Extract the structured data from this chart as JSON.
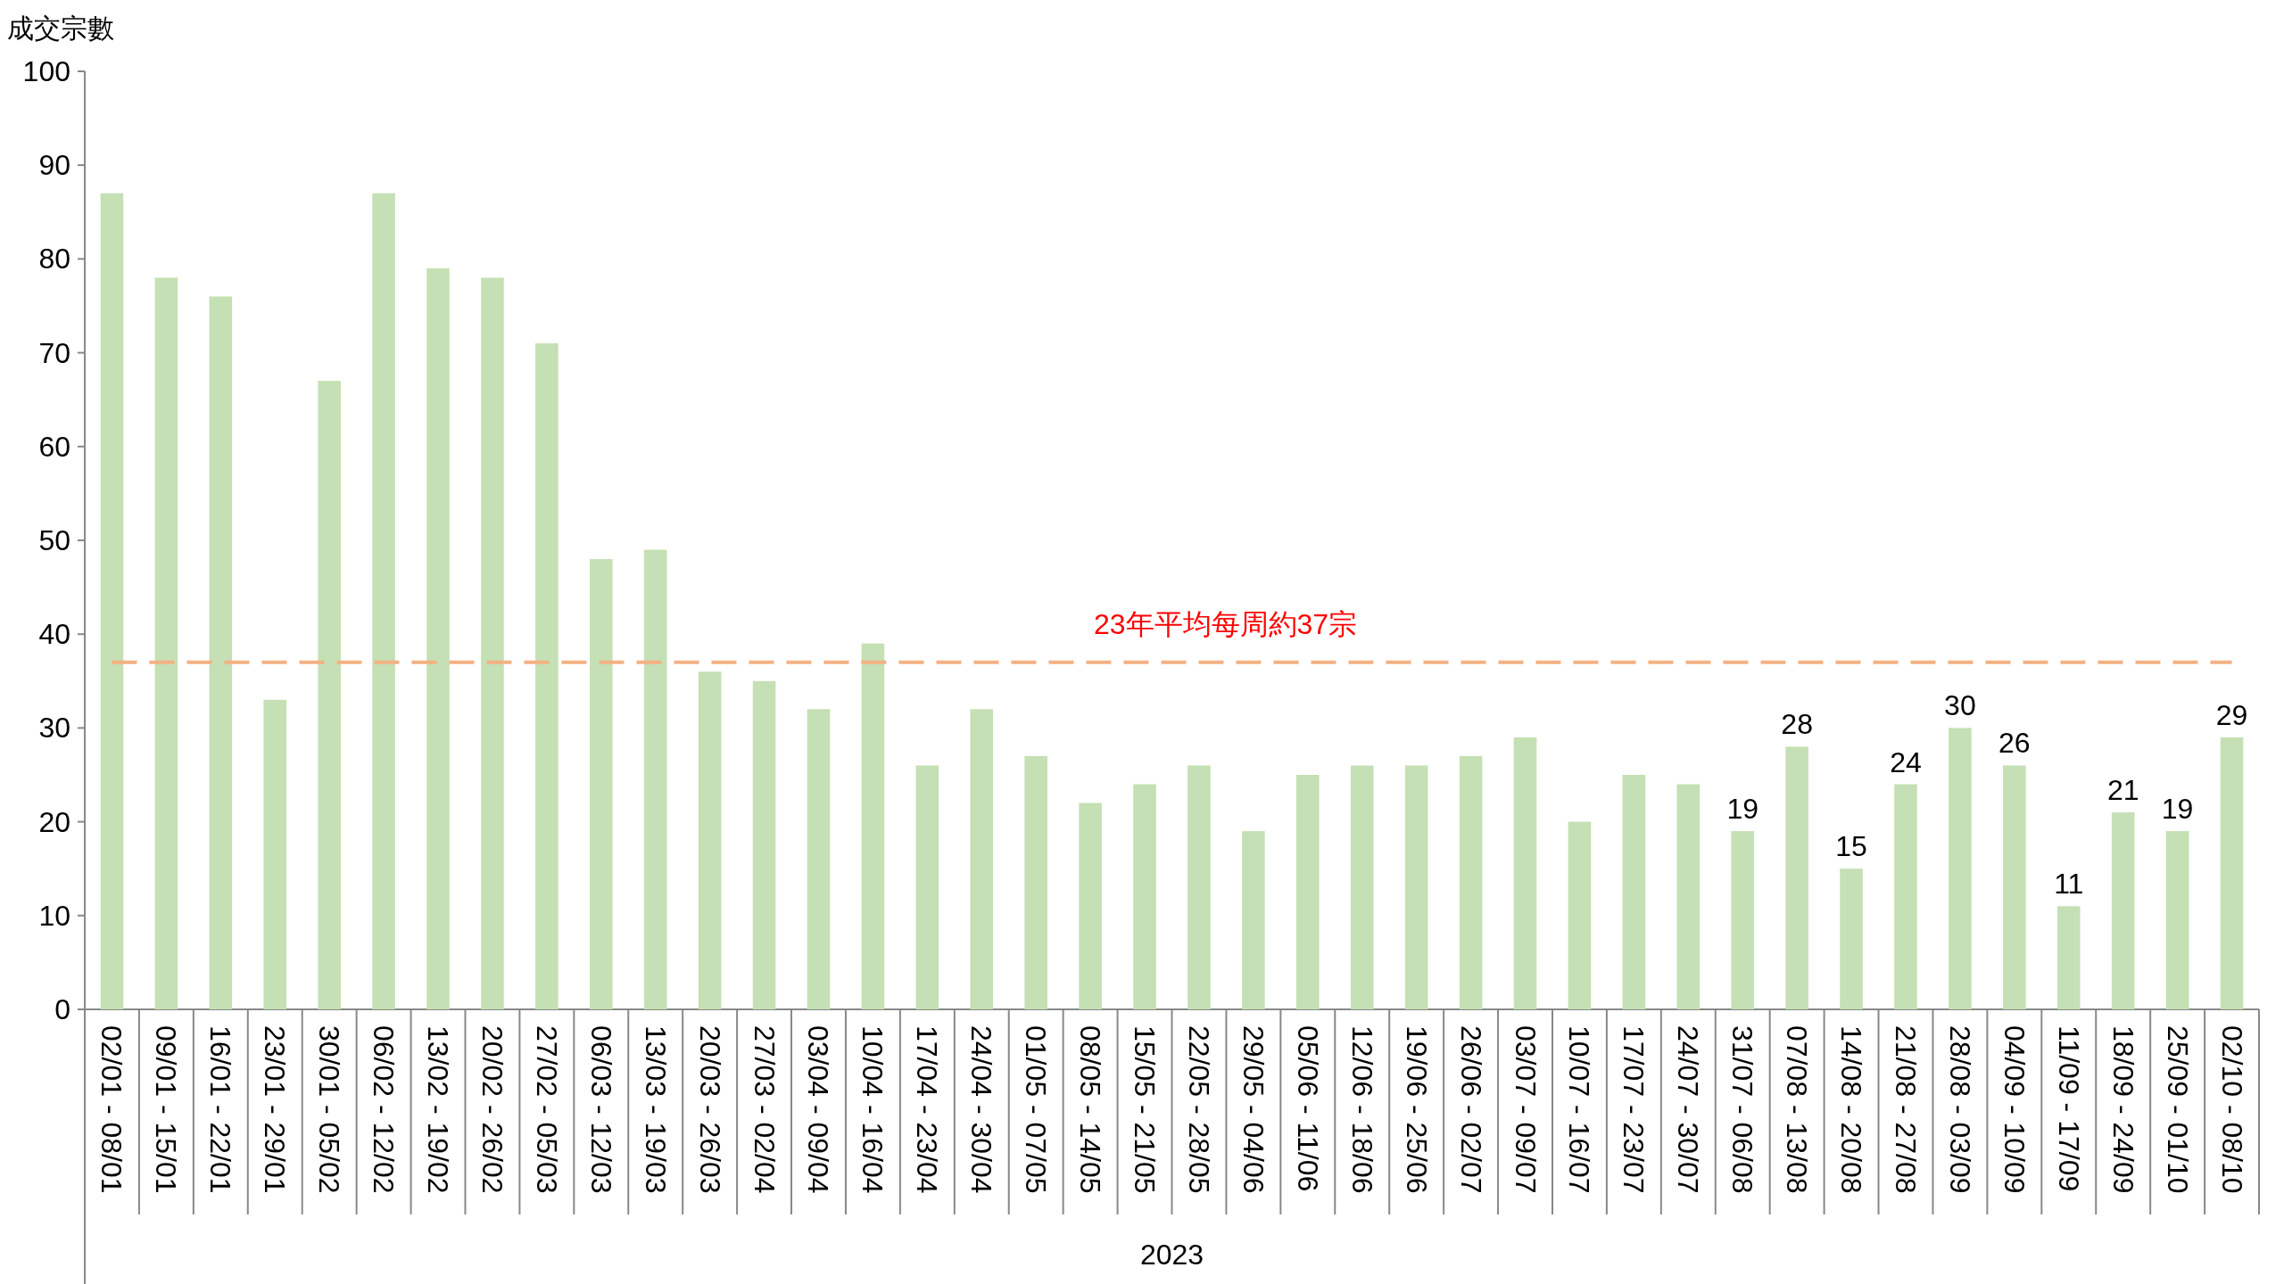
{
  "chart_data": {
    "type": "bar",
    "ylabel": "成交宗數",
    "xlabel": "2023",
    "categories": [
      "02/01 - 08/01",
      "09/01 - 15/01",
      "16/01 - 22/01",
      "23/01 - 29/01",
      "30/01 - 05/02",
      "06/02 - 12/02",
      "13/02 - 19/02",
      "20/02 - 26/02",
      "27/02 - 05/03",
      "06/03 - 12/03",
      "13/03 - 19/03",
      "20/03 - 26/03",
      "27/03 - 02/04",
      "03/04 - 09/04",
      "10/04 - 16/04",
      "17/04 - 23/04",
      "24/04 - 30/04",
      "01/05 - 07/05",
      "08/05 - 14/05",
      "15/05 - 21/05",
      "22/05 - 28/05",
      "29/05 - 04/06",
      "05/06 - 11/06",
      "12/06 - 18/06",
      "19/06 - 25/06",
      "26/06 - 02/07",
      "03/07 - 09/07",
      "10/07 - 16/07",
      "17/07 - 23/07",
      "24/07 - 30/07",
      "31/07 - 06/08",
      "07/08 - 13/08",
      "14/08 - 20/08",
      "21/08 - 27/08",
      "28/08 - 03/09",
      "04/09 - 10/09",
      "11/09 - 17/09",
      "18/09 - 24/09",
      "25/09 - 01/10",
      "02/10 - 08/10"
    ],
    "values": [
      87,
      78,
      76,
      33,
      67,
      87,
      79,
      78,
      71,
      48,
      49,
      36,
      35,
      32,
      39,
      26,
      32,
      27,
      22,
      24,
      26,
      19,
      25,
      26,
      26,
      27,
      29,
      20,
      25,
      24,
      19,
      28,
      15,
      24,
      30,
      26,
      11,
      21,
      19,
      29
    ],
    "value_labels": [
      null,
      null,
      null,
      null,
      null,
      null,
      null,
      null,
      null,
      null,
      null,
      null,
      null,
      null,
      null,
      null,
      null,
      null,
      null,
      null,
      null,
      null,
      null,
      null,
      null,
      null,
      null,
      null,
      null,
      null,
      "19",
      "28",
      "15",
      "24",
      "30",
      "26",
      "11",
      "21",
      "19",
      "29"
    ],
    "color": "#c5e0b4",
    "ylim": [
      0,
      100
    ],
    "yticks": [
      0,
      10,
      20,
      30,
      40,
      50,
      60,
      70,
      80,
      90,
      100
    ],
    "ref_lines": [
      {
        "axis": "y",
        "value": 37,
        "label": "23年平均每周約37宗",
        "color": "#f4b183",
        "line_style": "dashed"
      }
    ]
  }
}
